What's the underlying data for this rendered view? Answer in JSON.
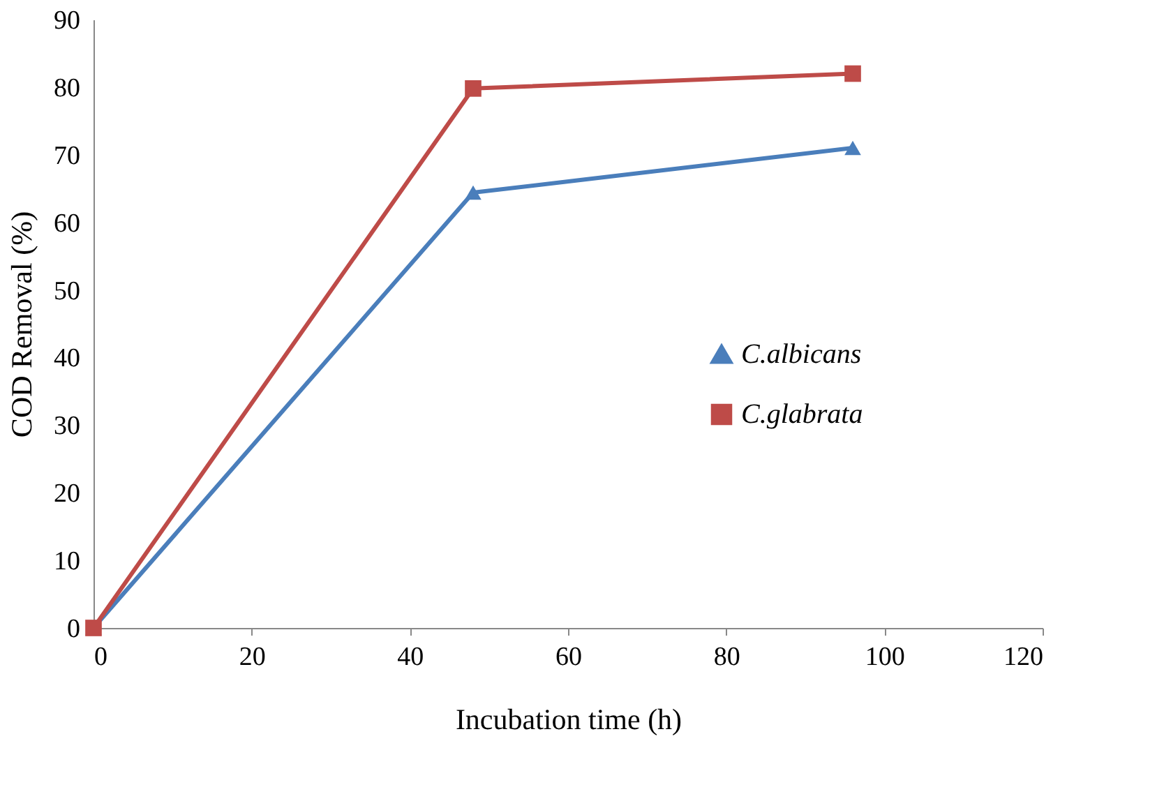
{
  "chart_data": {
    "type": "line",
    "xlabel": "Incubation time (h)",
    "ylabel": "COD Removal (%)",
    "x": [
      0,
      48,
      96
    ],
    "series": [
      {
        "name": "C.albicans",
        "color": "#4a7ebb",
        "values": [
          0,
          64.4,
          71.0
        ],
        "marker": "triangle"
      },
      {
        "name": "C.glabrata",
        "color": "#be4b48",
        "values": [
          0,
          79.8,
          82.0
        ],
        "marker": "square"
      }
    ],
    "xlim": [
      0,
      120
    ],
    "xticks": [
      0,
      20,
      40,
      60,
      80,
      100,
      120
    ],
    "ylim": [
      0,
      90
    ],
    "yticks": [
      0,
      10,
      20,
      30,
      40,
      50,
      60,
      70,
      80,
      90
    ],
    "grid": false,
    "legend": "right",
    "line_style": "solid"
  }
}
